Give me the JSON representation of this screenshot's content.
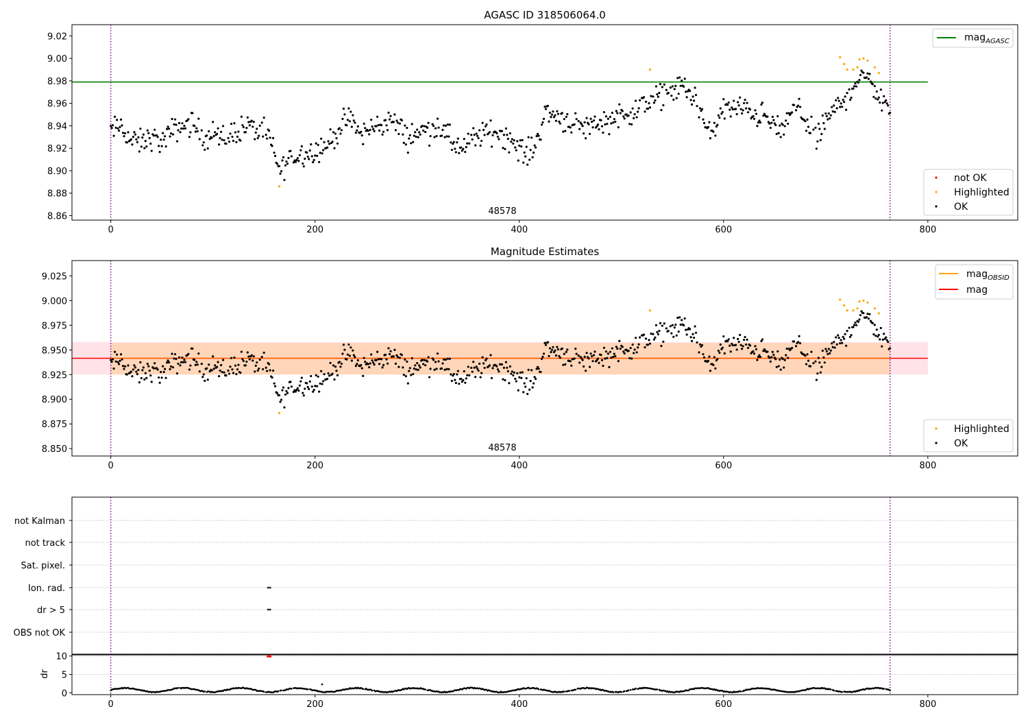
{
  "figure": {
    "title_top": "AGASC ID 318506064.0",
    "title_mid": "Magnitude Estimates",
    "annotation_obsid": "48578"
  },
  "legends": {
    "top_line_base": "mag",
    "top_line_sub": "AGASC",
    "mid_line1_base": "mag",
    "mid_line1_sub": "OBSID",
    "mid_line2": "mag",
    "notok": "not OK",
    "highlighted": "Highlighted",
    "ok": "OK"
  },
  "colors": {
    "ok": "#000000",
    "highlighted": "#ffa500",
    "notok": "#ff0000",
    "agasc_line": "#008000",
    "mag_line": "#ff0000",
    "obsid_line": "#ffa500",
    "band_pink": "#ffc0cb",
    "band_orange": "#ffa500",
    "vline": "#800080",
    "grid": "#b0b0b0"
  },
  "flag_rows": [
    "not Kalman",
    "not track",
    "Sat. pixel.",
    "Ion. rad.",
    "dr > 5",
    "OBS not OK"
  ],
  "chart_data": [
    {
      "type": "scatter",
      "title": "AGASC ID 318506064.0",
      "xlim": [
        -38,
        888
      ],
      "ylim": [
        8.856,
        9.03
      ],
      "xticks": [
        0,
        200,
        400,
        600,
        800
      ],
      "yticks": [
        8.86,
        8.88,
        8.9,
        8.92,
        8.94,
        8.96,
        8.98,
        9.0,
        9.02
      ],
      "ytick_labels": [
        "8.86",
        "8.88",
        "8.90",
        "8.92",
        "8.94",
        "8.96",
        "8.98",
        "9.00",
        "9.02"
      ],
      "mag_agasc": 8.979,
      "hline_xrange": [
        0,
        800
      ],
      "vlines": [
        0,
        763
      ],
      "annotation": {
        "x": 381,
        "text": "48578"
      },
      "legend": [
        "mag_AGASC",
        "not OK",
        "Highlighted",
        "OK"
      ],
      "series_trend": [
        [
          0,
          8.935
        ],
        [
          10,
          8.94
        ],
        [
          20,
          8.926
        ],
        [
          30,
          8.925
        ],
        [
          40,
          8.93
        ],
        [
          50,
          8.925
        ],
        [
          60,
          8.935
        ],
        [
          70,
          8.94
        ],
        [
          80,
          8.942
        ],
        [
          90,
          8.93
        ],
        [
          100,
          8.935
        ],
        [
          110,
          8.925
        ],
        [
          120,
          8.935
        ],
        [
          135,
          8.94
        ],
        [
          150,
          8.932
        ],
        [
          155,
          8.93
        ],
        [
          160,
          8.915
        ],
        [
          165,
          8.9
        ],
        [
          175,
          8.91
        ],
        [
          185,
          8.915
        ],
        [
          200,
          8.918
        ],
        [
          215,
          8.925
        ],
        [
          225,
          8.94
        ],
        [
          235,
          8.945
        ],
        [
          245,
          8.932
        ],
        [
          260,
          8.94
        ],
        [
          275,
          8.945
        ],
        [
          290,
          8.93
        ],
        [
          305,
          8.935
        ],
        [
          320,
          8.94
        ],
        [
          335,
          8.925
        ],
        [
          345,
          8.918
        ],
        [
          360,
          8.932
        ],
        [
          380,
          8.935
        ],
        [
          395,
          8.925
        ],
        [
          405,
          8.915
        ],
        [
          415,
          8.92
        ],
        [
          425,
          8.952
        ],
        [
          440,
          8.948
        ],
        [
          460,
          8.938
        ],
        [
          480,
          8.943
        ],
        [
          500,
          8.95
        ],
        [
          520,
          8.955
        ],
        [
          540,
          8.968
        ],
        [
          560,
          8.975
        ],
        [
          575,
          8.962
        ],
        [
          585,
          8.93
        ],
        [
          600,
          8.955
        ],
        [
          620,
          8.955
        ],
        [
          640,
          8.948
        ],
        [
          655,
          8.935
        ],
        [
          670,
          8.955
        ],
        [
          680,
          8.948
        ],
        [
          690,
          8.925
        ],
        [
          700,
          8.945
        ],
        [
          715,
          8.96
        ],
        [
          730,
          8.98
        ],
        [
          745,
          8.982
        ],
        [
          755,
          8.96
        ],
        [
          763,
          8.958
        ]
      ],
      "highlighted_points": [
        [
          165,
          8.886
        ],
        [
          528,
          8.99
        ],
        [
          714,
          9.001
        ],
        [
          718,
          8.995
        ],
        [
          721,
          8.99
        ],
        [
          727,
          8.99
        ],
        [
          731,
          8.992
        ],
        [
          733,
          8.999
        ],
        [
          737,
          9.0
        ],
        [
          741,
          8.998
        ],
        [
          748,
          8.992
        ],
        [
          752,
          8.987
        ]
      ],
      "notok_points": []
    },
    {
      "type": "scatter",
      "title": "Magnitude Estimates",
      "xlim": [
        -38,
        888
      ],
      "ylim": [
        8.8425,
        9.0405
      ],
      "xticks": [
        0,
        200,
        400,
        600,
        800
      ],
      "yticks": [
        8.85,
        8.875,
        8.9,
        8.925,
        8.95,
        8.975,
        9.0,
        9.025
      ],
      "ytick_labels": [
        "8.850",
        "8.875",
        "8.900",
        "8.925",
        "8.950",
        "8.975",
        "9.000",
        "9.025"
      ],
      "mag": 8.9415,
      "mag_band_pink": [
        8.925,
        8.958
      ],
      "mag_band_orange": [
        8.925,
        8.957
      ],
      "vlines": [
        0,
        763
      ],
      "annotation": {
        "x": 381,
        "text": "48578"
      },
      "legend": [
        "mag_OBSID",
        "mag",
        "Highlighted",
        "OK"
      ],
      "highlighted_points": [
        [
          165,
          8.886
        ],
        [
          528,
          8.99
        ],
        [
          714,
          9.001
        ],
        [
          718,
          8.995
        ],
        [
          721,
          8.99
        ],
        [
          727,
          8.99
        ],
        [
          731,
          8.992
        ],
        [
          733,
          8.999
        ],
        [
          737,
          9.0
        ],
        [
          741,
          8.998
        ],
        [
          748,
          8.992
        ],
        [
          752,
          8.987
        ]
      ]
    },
    {
      "type": "scatter",
      "xlim": [
        -38,
        888
      ],
      "flag_rows": [
        "not Kalman",
        "not track",
        "Sat. pixel.",
        "Ion. rad.",
        "dr > 5",
        "OBS not OK"
      ],
      "flag_points": {
        "Ion. rad.": [
          154,
          156
        ],
        "dr > 5": [
          154,
          156
        ]
      },
      "vlines": [
        0,
        763
      ]
    },
    {
      "type": "scatter",
      "ylabel": "dr",
      "xlim": [
        -38,
        888
      ],
      "ylim": [
        -0.5,
        10.5
      ],
      "xticks": [
        0,
        200,
        400,
        600,
        800
      ],
      "yticks": [
        0,
        5,
        10
      ],
      "ytick_labels": [
        "0",
        "5",
        "10"
      ],
      "notok_markers": [
        [
          154,
          10
        ],
        [
          156,
          10
        ]
      ],
      "vlines": [
        0,
        763
      ]
    }
  ]
}
